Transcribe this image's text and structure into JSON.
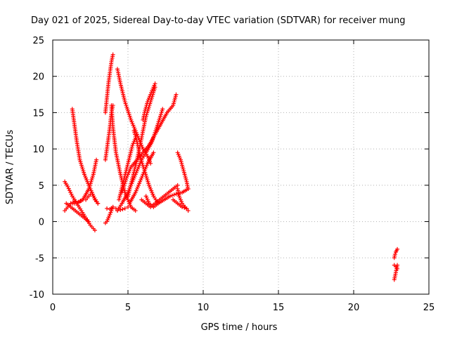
{
  "chart_data": {
    "type": "scatter",
    "title": "Day 021 of 2025, Sidereal Day-to-day VTEC variation (SDTVAR) for receiver mung",
    "xlabel": "GPS time / hours",
    "ylabel": "SDTVAR / TECUs",
    "xlim": [
      0,
      25
    ],
    "ylim": [
      -10,
      25
    ],
    "xticks": [
      "0",
      "5",
      "10",
      "15",
      "20",
      "25"
    ],
    "yticks": [
      "-10",
      "-5",
      "0",
      "5",
      "10",
      "15",
      "20",
      "25"
    ],
    "grid": true,
    "marker": "+",
    "color": "#ff0000",
    "series": [
      {
        "x": [
          0.8,
          1.0,
          1.2,
          1.5,
          1.7,
          2.0
        ],
        "y": [
          1.5,
          2.0,
          2.5,
          2.8,
          2.7,
          3.0
        ]
      },
      {
        "x": [
          0.8,
          1.0,
          1.3,
          1.6,
          1.9,
          2.2,
          2.5,
          2.8
        ],
        "y": [
          5.5,
          4.8,
          3.5,
          2.5,
          1.5,
          0.5,
          -0.5,
          -1.2
        ]
      },
      {
        "x": [
          0.9,
          1.2,
          1.5,
          1.8,
          2.1,
          2.4
        ],
        "y": [
          2.5,
          2.0,
          1.5,
          1.0,
          0.5,
          0.0
        ]
      },
      {
        "x": [
          1.3,
          1.4,
          1.6,
          1.8,
          2.1,
          2.4,
          2.7,
          3.0
        ],
        "y": [
          15.5,
          14.0,
          11.0,
          8.5,
          6.5,
          5.0,
          3.5,
          2.5
        ]
      },
      {
        "x": [
          1.2,
          1.6,
          2.0,
          2.4,
          2.7,
          2.9
        ],
        "y": [
          2.5,
          2.5,
          3.0,
          4.5,
          6.5,
          8.5
        ]
      },
      {
        "x": [
          2.2,
          2.4,
          2.6,
          2.8,
          3.0
        ],
        "y": [
          3.0,
          3.5,
          4.0,
          3.0,
          2.5
        ]
      },
      {
        "x": [
          3.5,
          3.6,
          3.7,
          3.8,
          3.9,
          4.0
        ],
        "y": [
          -0.2,
          0.0,
          0.5,
          1.0,
          1.5,
          2.0
        ]
      },
      {
        "x": [
          3.5,
          3.6,
          3.7,
          3.8,
          3.9,
          4.0
        ],
        "y": [
          8.5,
          10.0,
          11.5,
          13.0,
          15.0,
          16.0
        ]
      },
      {
        "x": [
          3.5,
          3.6,
          3.7,
          3.8,
          3.9,
          4.0
        ],
        "y": [
          15.0,
          17.0,
          19.0,
          20.5,
          22.0,
          23.0
        ]
      },
      {
        "x": [
          3.6,
          3.8,
          4.0,
          4.2,
          4.3,
          4.5,
          4.8,
          5.0
        ],
        "y": [
          1.8,
          1.7,
          2.0,
          1.8,
          1.5,
          1.6,
          1.8,
          2.0
        ]
      },
      {
        "x": [
          3.9,
          4.0,
          4.2,
          4.5,
          4.8,
          5.2,
          5.5
        ],
        "y": [
          16.0,
          13.0,
          9.5,
          6.5,
          4.0,
          2.0,
          1.5
        ]
      },
      {
        "x": [
          4.3,
          4.5,
          4.8,
          5.2,
          5.6,
          6.0,
          6.3,
          6.5
        ],
        "y": [
          21.0,
          19.0,
          16.5,
          14.0,
          12.0,
          10.0,
          9.0,
          8.0
        ]
      },
      {
        "x": [
          4.3,
          4.6,
          5.0,
          5.3,
          5.6,
          5.9,
          6.2,
          6.6,
          7.0,
          7.3
        ],
        "y": [
          1.5,
          2.5,
          4.0,
          5.5,
          7.0,
          8.5,
          9.5,
          11.0,
          13.5,
          15.5
        ]
      },
      {
        "x": [
          4.4,
          4.7,
          5.0,
          5.3,
          5.6
        ],
        "y": [
          3.0,
          5.5,
          8.0,
          10.5,
          12.0
        ]
      },
      {
        "x": [
          4.6,
          4.9,
          5.2,
          5.6,
          6.0,
          6.4,
          6.8,
          7.2,
          7.6,
          8.0,
          8.2
        ],
        "y": [
          4.0,
          6.0,
          7.5,
          8.5,
          9.5,
          10.5,
          12.0,
          13.5,
          15.0,
          16.0,
          17.5
        ]
      },
      {
        "x": [
          5.0,
          5.3,
          5.6,
          5.8,
          6.0,
          6.2,
          6.5,
          6.8
        ],
        "y": [
          3.5,
          6.0,
          8.5,
          10.5,
          12.5,
          14.5,
          16.5,
          18.5
        ]
      },
      {
        "x": [
          5.1,
          5.5,
          5.9,
          6.3,
          6.7
        ],
        "y": [
          2.5,
          4.0,
          6.0,
          8.0,
          9.5
        ]
      },
      {
        "x": [
          5.4,
          5.6,
          5.8,
          6.1,
          6.4,
          6.7,
          7.0
        ],
        "y": [
          12.5,
          11.0,
          9.0,
          7.0,
          5.0,
          3.5,
          2.5
        ]
      },
      {
        "x": [
          6.0,
          6.1,
          6.3,
          6.5,
          6.7,
          6.8
        ],
        "y": [
          14.0,
          15.0,
          16.5,
          17.5,
          18.5,
          19.0
        ]
      },
      {
        "x": [
          6.2,
          6.4,
          6.7,
          7.0,
          7.4,
          7.8,
          8.2,
          8.6,
          9.0
        ],
        "y": [
          3.5,
          2.5,
          2.0,
          2.5,
          3.0,
          3.5,
          3.8,
          4.0,
          4.5
        ]
      },
      {
        "x": [
          5.9,
          6.2,
          6.5,
          6.8,
          7.1,
          7.4,
          7.7,
          8.0,
          8.3
        ],
        "y": [
          3.0,
          2.5,
          2.0,
          2.5,
          3.0,
          3.5,
          4.0,
          4.5,
          5.0
        ]
      },
      {
        "x": [
          8.3,
          8.5,
          8.7,
          8.9,
          9.0
        ],
        "y": [
          9.5,
          8.5,
          7.0,
          5.5,
          4.5
        ]
      },
      {
        "x": [
          8.3,
          8.4,
          8.6,
          8.8,
          9.0
        ],
        "y": [
          4.5,
          3.5,
          2.5,
          2.0,
          1.5
        ]
      },
      {
        "x": [
          8.0,
          8.3,
          8.6,
          8.9
        ],
        "y": [
          3.0,
          2.5,
          2.0,
          1.8
        ]
      },
      {
        "x": [
          22.7,
          22.75,
          22.8,
          22.85,
          22.9
        ],
        "y": [
          -5.0,
          -4.5,
          -4.2,
          -4.0,
          -3.8
        ]
      },
      {
        "x": [
          22.7,
          22.75,
          22.8,
          22.85,
          22.9
        ],
        "y": [
          -8.0,
          -7.5,
          -7.0,
          -6.5,
          -6.0
        ]
      },
      {
        "x": [
          22.7,
          22.8,
          22.9
        ],
        "y": [
          -6.0,
          -6.2,
          -6.5
        ]
      }
    ]
  }
}
